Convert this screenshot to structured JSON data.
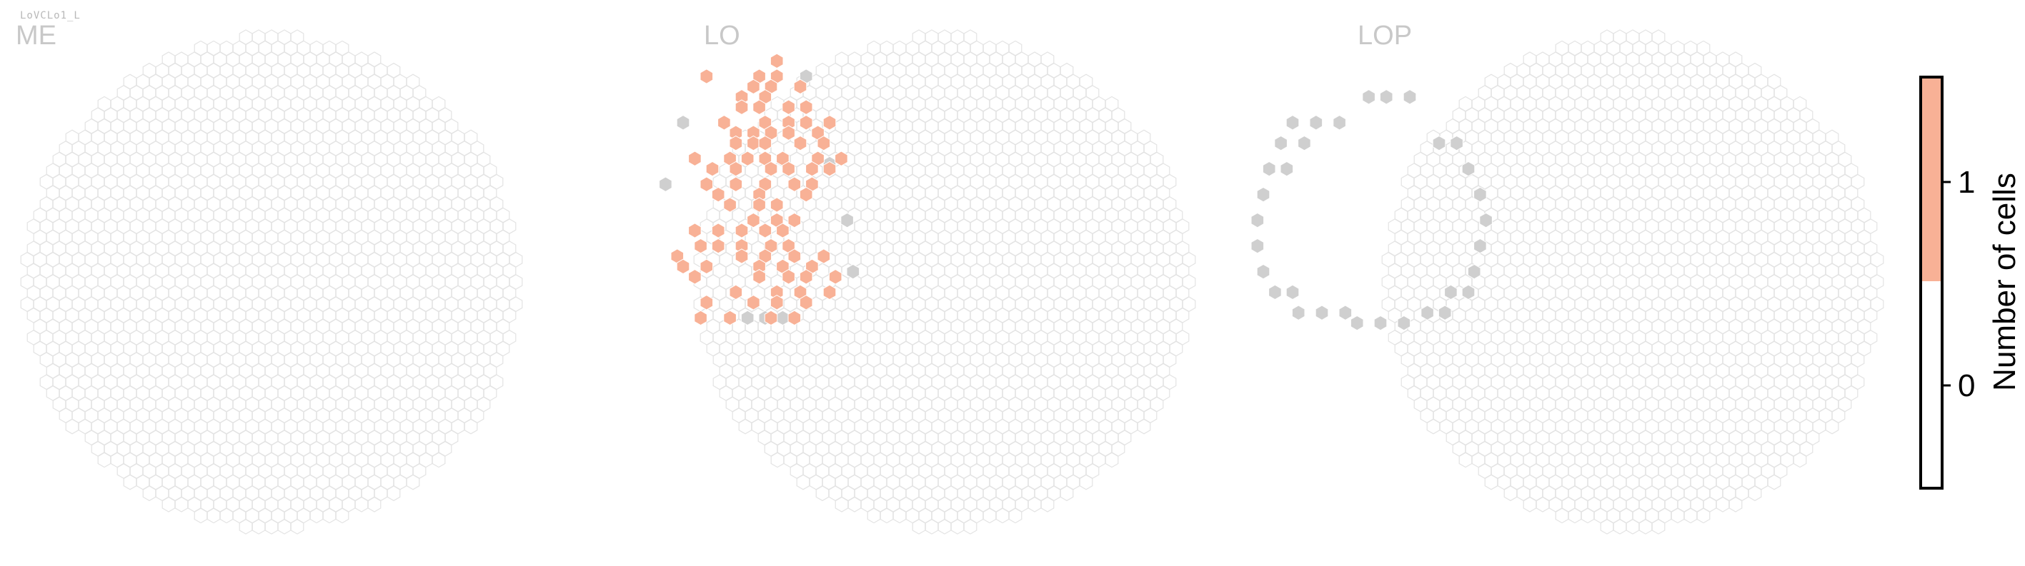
{
  "cell_type_label": "LoVCLo1_L",
  "chart_data": {
    "type": "heatmap",
    "subtype": "hexagonal column map",
    "panels": [
      {
        "name": "ME",
        "highlighted_rows": [],
        "unmapped_rows": []
      },
      {
        "name": "LO",
        "highlighted_rows": [
          {
            "y": 0.67,
            "x": [
              0.36
            ]
          },
          {
            "y": 0.7,
            "x": [
              0.24,
              0.33,
              0.36
            ]
          },
          {
            "y": 0.72,
            "x": [
              0.32,
              0.35,
              0.4
            ]
          },
          {
            "y": 0.74,
            "x": [
              0.3,
              0.34
            ]
          },
          {
            "y": 0.76,
            "x": [
              0.3,
              0.33,
              0.38,
              0.41
            ]
          },
          {
            "y": 0.79,
            "x": [
              0.27,
              0.34,
              0.38,
              0.41,
              0.45
            ]
          },
          {
            "y": 0.81,
            "x": [
              0.29,
              0.32,
              0.35,
              0.38,
              0.43
            ]
          },
          {
            "y": 0.83,
            "x": [
              0.29,
              0.32,
              0.34,
              0.4,
              0.44
            ]
          },
          {
            "y": 0.86,
            "x": [
              0.22,
              0.28,
              0.31,
              0.34,
              0.37,
              0.43,
              0.47
            ]
          },
          {
            "y": 0.88,
            "x": [
              0.25,
              0.29,
              0.35,
              0.38,
              0.42,
              0.45
            ]
          },
          {
            "y": 0.91,
            "x": [
              0.24,
              0.29,
              0.34,
              0.39,
              0.42
            ]
          },
          {
            "y": 0.93,
            "x": [
              0.26,
              0.33,
              0.41
            ]
          },
          {
            "y": 0.95,
            "x": [
              0.28,
              0.33,
              0.36
            ]
          },
          {
            "y": 0.98,
            "x": [
              0.32,
              0.36,
              0.39
            ]
          },
          {
            "y": 1.0,
            "x": [
              0.22,
              0.26,
              0.3,
              0.34,
              0.37
            ]
          },
          {
            "y": 1.03,
            "x": [
              0.23,
              0.26,
              0.3,
              0.35,
              0.38
            ]
          },
          {
            "y": 1.05,
            "x": [
              0.19,
              0.3,
              0.34,
              0.39,
              0.44
            ]
          },
          {
            "y": 1.07,
            "x": [
              0.2,
              0.24,
              0.33,
              0.37,
              0.42
            ]
          },
          {
            "y": 1.09,
            "x": [
              0.22,
              0.33,
              0.38,
              0.41,
              0.46
            ]
          },
          {
            "y": 1.12,
            "x": [
              0.29,
              0.36,
              0.4,
              0.45
            ]
          },
          {
            "y": 1.14,
            "x": [
              0.24,
              0.32,
              0.36,
              0.41
            ]
          },
          {
            "y": 1.17,
            "x": [
              0.23,
              0.28,
              0.35,
              0.39
            ]
          }
        ],
        "unmapped_rows": [
          {
            "y": 0.7,
            "x": [
              0.41
            ]
          },
          {
            "y": 0.79,
            "x": [
              0.2
            ]
          },
          {
            "y": 0.87,
            "x": [
              0.45
            ]
          },
          {
            "y": 0.91,
            "x": [
              0.17
            ]
          },
          {
            "y": 0.98,
            "x": [
              0.48
            ]
          },
          {
            "y": 1.08,
            "x": [
              0.49
            ]
          },
          {
            "y": 1.17,
            "x": [
              0.31,
              0.34,
              0.37
            ]
          }
        ]
      },
      {
        "name": "LOP",
        "highlighted_rows": [],
        "unmapped_rows": [
          {
            "y": 0.74,
            "x": [
              0.33,
              0.36,
              0.4
            ]
          },
          {
            "y": 0.79,
            "x": [
              0.2,
              0.24,
              0.28
            ]
          },
          {
            "y": 0.83,
            "x": [
              0.18,
              0.22,
              0.45,
              0.48
            ]
          },
          {
            "y": 0.88,
            "x": [
              0.16,
              0.19,
              0.5
            ]
          },
          {
            "y": 0.93,
            "x": [
              0.15,
              0.52
            ]
          },
          {
            "y": 0.98,
            "x": [
              0.14,
              0.53
            ]
          },
          {
            "y": 1.03,
            "x": [
              0.14,
              0.52
            ]
          },
          {
            "y": 1.08,
            "x": [
              0.15,
              0.51
            ]
          },
          {
            "y": 1.12,
            "x": [
              0.17,
              0.2,
              0.47,
              0.5
            ]
          },
          {
            "y": 1.16,
            "x": [
              0.21,
              0.25,
              0.29,
              0.43,
              0.46
            ]
          },
          {
            "y": 1.18,
            "x": [
              0.31,
              0.35,
              0.39
            ]
          }
        ]
      }
    ],
    "colorbar": {
      "label": "Number of cells",
      "ticks": [
        {
          "value": 1,
          "label": "1"
        },
        {
          "value": 0,
          "label": "0"
        }
      ],
      "range": [
        -0.5,
        1.5
      ],
      "bins": [
        {
          "from": -0.5,
          "to": 0.5,
          "color": "#ffffff"
        },
        {
          "from": 0.5,
          "to": 1.5,
          "color": "#f8b196"
        }
      ]
    },
    "colors": {
      "highlight": "#f8b196",
      "unmapped": "#cfcfcf",
      "empty_stroke": "#e3e3e3"
    }
  }
}
